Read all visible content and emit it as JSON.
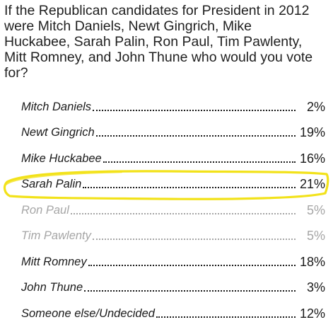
{
  "question": "If the Republican candidates for President in 2012 were Mitch Daniels, Newt Gingrich, Mike Huckabee, Sarah Palin, Ron Paul, Tim Pawlenty, Mitt Romney, and John Thune who would you vote for?",
  "results": [
    {
      "name": "Mitch Daniels",
      "pct": "2%",
      "dim": false,
      "highlighted": false
    },
    {
      "name": "Newt Gingrich",
      "pct": "19%",
      "dim": false,
      "highlighted": false
    },
    {
      "name": "Mike Huckabee",
      "pct": "16%",
      "dim": false,
      "highlighted": false
    },
    {
      "name": "Sarah Palin",
      "pct": "21%",
      "dim": false,
      "highlighted": true
    },
    {
      "name": "Ron Paul",
      "pct": "5%",
      "dim": true,
      "highlighted": false
    },
    {
      "name": "Tim Pawlenty",
      "pct": "5%",
      "dim": true,
      "highlighted": false
    },
    {
      "name": "Mitt Romney",
      "pct": "18%",
      "dim": false,
      "highlighted": false
    },
    {
      "name": "John Thune",
      "pct": "3%",
      "dim": false,
      "highlighted": false
    },
    {
      "name": "Someone else/Undecided",
      "pct": "12%",
      "dim": false,
      "highlighted": false
    }
  ],
  "colors": {
    "highlight": "#f2e21a",
    "text": "#1a1a1a",
    "dim_text": "#a6a6a6"
  }
}
